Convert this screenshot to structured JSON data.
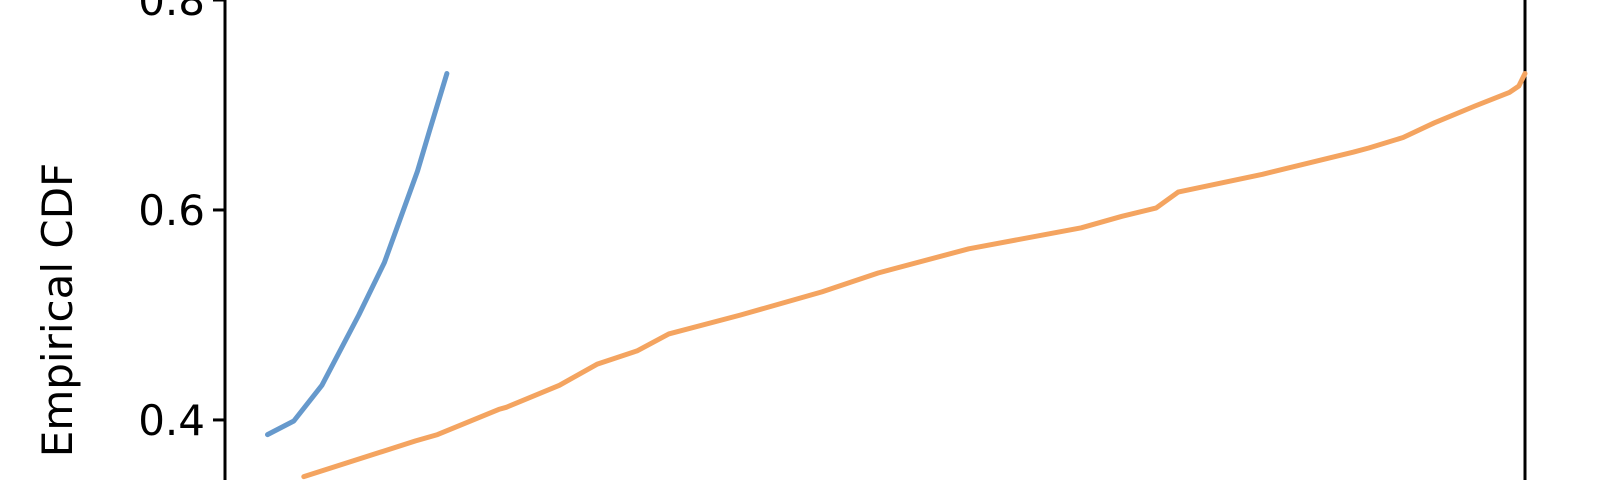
{
  "chart_data": {
    "type": "line",
    "xlabel": "",
    "ylabel": "Empirical CDF",
    "title": "",
    "yticks": [
      0.4,
      0.6,
      0.8
    ],
    "ytick_labels": [
      "0.4",
      "0.6",
      "0.8"
    ],
    "series": [
      {
        "color": "#6699cc",
        "x": [
          1.36,
          2.2,
          3.1,
          4.28,
          5.1,
          6.16,
          6.55,
          7.1
        ],
        "y": [
          0.386,
          0.399,
          0.433,
          0.5,
          0.55,
          0.637,
          0.676,
          0.73
        ]
      },
      {
        "color": "#f4a460",
        "x": [
          2.52,
          6.1,
          6.8,
          8.76,
          9.0,
          10.7,
          11.9,
          13.2,
          14.2,
          16.5,
          19.1,
          20.9,
          23.8,
          27.4,
          28.7,
          29.8,
          30.5,
          33.2,
          36.1,
          36.6,
          37.7,
          38.7,
          40.0,
          41.1,
          41.4,
          41.6
        ],
        "y": [
          0.346,
          0.38,
          0.386,
          0.41,
          0.412,
          0.433,
          0.453,
          0.466,
          0.482,
          0.5,
          0.522,
          0.54,
          0.563,
          0.583,
          0.594,
          0.602,
          0.617,
          0.634,
          0.655,
          0.659,
          0.669,
          0.683,
          0.699,
          0.712,
          0.718,
          0.73
        ]
      }
    ]
  }
}
